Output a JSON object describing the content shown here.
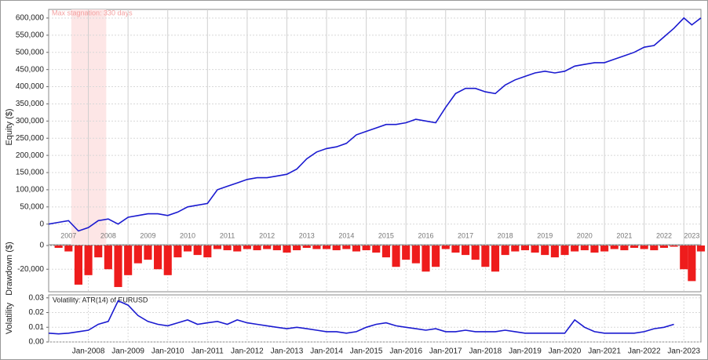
{
  "chart_data": [
    {
      "type": "line",
      "y_label": "Equity ($)",
      "color": "#1a1ad0",
      "grid": true,
      "xlim": [
        2007.0,
        2023.43
      ],
      "ylim": [
        -60000,
        625000
      ],
      "yticks": [
        0,
        {
          "value": 50000,
          "label": "50,000"
        },
        {
          "value": 100000,
          "label": "100,000"
        },
        {
          "value": 150000,
          "label": "150,000"
        },
        {
          "value": 200000,
          "label": "200,000"
        },
        {
          "value": 250000,
          "label": "250,000"
        },
        {
          "value": 300000,
          "label": "300,000"
        },
        {
          "value": 350000,
          "label": "350,000"
        },
        {
          "value": 400000,
          "label": "400,000"
        },
        {
          "value": 450000,
          "label": "450,000"
        },
        {
          "value": 500000,
          "label": "500,000"
        },
        {
          "value": 550000,
          "label": "550,000"
        },
        {
          "value": 600000,
          "label": "600,000"
        }
      ],
      "xticks": [
        {
          "value": 2007.5,
          "label": "2007"
        },
        {
          "value": 2008.5,
          "label": "2008"
        },
        {
          "value": 2009.5,
          "label": "2009"
        },
        {
          "value": 2010.5,
          "label": "2010"
        },
        {
          "value": 2011.5,
          "label": "2011"
        },
        {
          "value": 2012.5,
          "label": "2012"
        },
        {
          "value": 2013.5,
          "label": "2013"
        },
        {
          "value": 2014.5,
          "label": "2014"
        },
        {
          "value": 2015.5,
          "label": "2015"
        },
        {
          "value": 2016.5,
          "label": "2016"
        },
        {
          "value": 2017.5,
          "label": "2017"
        },
        {
          "value": 2018.5,
          "label": "2018"
        },
        {
          "value": 2019.5,
          "label": "2019"
        },
        {
          "value": 2020.5,
          "label": "2020"
        },
        {
          "value": 2021.5,
          "label": "2021"
        },
        {
          "value": 2022.5,
          "label": "2022"
        },
        {
          "value": 2023.2,
          "label": "2023"
        }
      ],
      "stagnation": {
        "label": "Max stagnation: 330 days",
        "start": 2007.57,
        "end": 2008.45
      },
      "x": [
        2007.0,
        2007.25,
        2007.5,
        2007.75,
        2008.0,
        2008.25,
        2008.5,
        2008.75,
        2009.0,
        2009.25,
        2009.5,
        2009.75,
        2010.0,
        2010.25,
        2010.5,
        2010.75,
        2011.0,
        2011.25,
        2011.5,
        2011.75,
        2012.0,
        2012.25,
        2012.5,
        2012.75,
        2013.0,
        2013.25,
        2013.5,
        2013.75,
        2014.0,
        2014.25,
        2014.5,
        2014.75,
        2015.0,
        2015.25,
        2015.5,
        2015.75,
        2016.0,
        2016.25,
        2016.5,
        2016.75,
        2017.0,
        2017.25,
        2017.5,
        2017.75,
        2018.0,
        2018.25,
        2018.5,
        2018.75,
        2019.0,
        2019.25,
        2019.5,
        2019.75,
        2020.0,
        2020.25,
        2020.5,
        2020.75,
        2021.0,
        2021.25,
        2021.5,
        2021.75,
        2022.0,
        2022.25,
        2022.5,
        2022.75,
        2023.0,
        2023.2,
        2023.43
      ],
      "values": [
        0,
        5000,
        10000,
        -20000,
        -10000,
        10000,
        15000,
        0,
        20000,
        25000,
        30000,
        30000,
        25000,
        35000,
        50000,
        55000,
        60000,
        100000,
        110000,
        120000,
        130000,
        135000,
        135000,
        140000,
        145000,
        160000,
        190000,
        210000,
        220000,
        225000,
        235000,
        260000,
        270000,
        280000,
        290000,
        290000,
        295000,
        305000,
        300000,
        295000,
        340000,
        380000,
        395000,
        395000,
        385000,
        380000,
        405000,
        420000,
        430000,
        440000,
        445000,
        440000,
        445000,
        460000,
        465000,
        470000,
        470000,
        480000,
        490000,
        500000,
        515000,
        520000,
        545000,
        570000,
        600000,
        580000,
        600000
      ]
    },
    {
      "type": "bar",
      "y_label": "Drawdown ($)",
      "color": "#ee1c1c",
      "grid": true,
      "xlim": [
        2007.0,
        2023.43
      ],
      "ylim": [
        -39000,
        0
      ],
      "yticks": [
        {
          "value": -20000,
          "label": "-20,000"
        },
        0
      ],
      "x": [
        2007.0,
        2007.25,
        2007.5,
        2007.75,
        2008.0,
        2008.25,
        2008.5,
        2008.75,
        2009.0,
        2009.25,
        2009.5,
        2009.75,
        2010.0,
        2010.25,
        2010.5,
        2010.75,
        2011.0,
        2011.25,
        2011.5,
        2011.75,
        2012.0,
        2012.25,
        2012.5,
        2012.75,
        2013.0,
        2013.25,
        2013.5,
        2013.75,
        2014.0,
        2014.25,
        2014.5,
        2014.75,
        2015.0,
        2015.25,
        2015.5,
        2015.75,
        2016.0,
        2016.25,
        2016.5,
        2016.75,
        2017.0,
        2017.25,
        2017.5,
        2017.75,
        2018.0,
        2018.25,
        2018.5,
        2018.75,
        2019.0,
        2019.25,
        2019.5,
        2019.75,
        2020.0,
        2020.25,
        2020.5,
        2020.75,
        2021.0,
        2021.25,
        2021.5,
        2021.75,
        2022.0,
        2022.25,
        2022.5,
        2022.75,
        2023.0,
        2023.2,
        2023.43
      ],
      "values": [
        0,
        -2000,
        -5000,
        -33000,
        -25000,
        -10000,
        -20000,
        -35000,
        -25000,
        -15000,
        -12000,
        -20000,
        -25000,
        -10000,
        -5000,
        -8000,
        -10000,
        -3000,
        -4000,
        -5000,
        -3000,
        -4000,
        -3000,
        -4000,
        -6000,
        -4000,
        -2000,
        -3000,
        -3000,
        -4000,
        -3000,
        -5000,
        -4000,
        -6000,
        -10000,
        -18000,
        -12000,
        -15000,
        -22000,
        -18000,
        -3000,
        -6000,
        -8000,
        -12000,
        -18000,
        -22000,
        -8000,
        -5000,
        -4000,
        -6000,
        -8000,
        -10000,
        -8000,
        -5000,
        -4000,
        -6000,
        -5000,
        -3000,
        -4000,
        -2000,
        -3000,
        -4000,
        -2000,
        -1000,
        -20000,
        -30000,
        -5000
      ]
    },
    {
      "type": "line",
      "y_label": "Volatility",
      "title": "Volatility: ATR(14) of EURUSD",
      "color": "#1a1ad0",
      "grid": true,
      "xlim": [
        2007.0,
        2023.43
      ],
      "ylim": [
        0,
        0.032
      ],
      "yticks": [
        {
          "value": 0,
          "label": "0.00"
        },
        0.01,
        0.02,
        0.03
      ],
      "xticks": [
        {
          "value": 2008,
          "label": "Jan-2008"
        },
        {
          "value": 2009,
          "label": "Jan-2009"
        },
        {
          "value": 2010,
          "label": "Jan-2010"
        },
        {
          "value": 2011,
          "label": "Jan-2011"
        },
        {
          "value": 2012,
          "label": "Jan-2012"
        },
        {
          "value": 2013,
          "label": "Jan-2013"
        },
        {
          "value": 2014,
          "label": "Jan-2014"
        },
        {
          "value": 2015,
          "label": "Jan-2015"
        },
        {
          "value": 2016,
          "label": "Jan-2016"
        },
        {
          "value": 2017,
          "label": "Jan-2017"
        },
        {
          "value": 2018,
          "label": "Jan-2018"
        },
        {
          "value": 2019,
          "label": "Jan-2019"
        },
        {
          "value": 2020,
          "label": "Jan-2020"
        },
        {
          "value": 2021,
          "label": "Jan-2021"
        },
        {
          "value": 2022,
          "label": "Jan-2022"
        },
        {
          "value": 2023,
          "label": "Jan-2023"
        }
      ],
      "x": [
        2007.0,
        2007.25,
        2007.5,
        2007.75,
        2008.0,
        2008.25,
        2008.5,
        2008.75,
        2009.0,
        2009.25,
        2009.5,
        2009.75,
        2010.0,
        2010.25,
        2010.5,
        2010.75,
        2011.0,
        2011.25,
        2011.5,
        2011.75,
        2012.0,
        2012.25,
        2012.5,
        2012.75,
        2013.0,
        2013.25,
        2013.5,
        2013.75,
        2014.0,
        2014.25,
        2014.5,
        2014.75,
        2015.0,
        2015.25,
        2015.5,
        2015.75,
        2016.0,
        2016.25,
        2016.5,
        2016.75,
        2017.0,
        2017.25,
        2017.5,
        2017.75,
        2018.0,
        2018.25,
        2018.5,
        2018.75,
        2019.0,
        2019.25,
        2019.5,
        2019.75,
        2020.0,
        2020.25,
        2020.5,
        2020.75,
        2021.0,
        2021.25,
        2021.5,
        2021.75,
        2022.0,
        2022.25,
        2022.5,
        2022.75,
        2023.0,
        2023.2,
        2023.43
      ],
      "values": [
        0.006,
        0.0055,
        0.006,
        0.007,
        0.008,
        0.012,
        0.014,
        0.028,
        0.025,
        0.018,
        0.014,
        0.012,
        0.011,
        0.013,
        0.015,
        0.012,
        0.013,
        0.014,
        0.012,
        0.015,
        0.013,
        0.012,
        0.011,
        0.01,
        0.009,
        0.01,
        0.009,
        0.008,
        0.007,
        0.007,
        0.006,
        0.007,
        0.01,
        0.012,
        0.013,
        0.011,
        0.01,
        0.009,
        0.008,
        0.009,
        0.007,
        0.007,
        0.008,
        0.007,
        0.007,
        0.007,
        0.008,
        0.007,
        0.006,
        0.006,
        0.006,
        0.006,
        0.006,
        0.015,
        0.01,
        0.007,
        0.006,
        0.006,
        0.006,
        0.006,
        0.007,
        0.009,
        0.01,
        0.012,
        null,
        null,
        null
      ]
    }
  ]
}
